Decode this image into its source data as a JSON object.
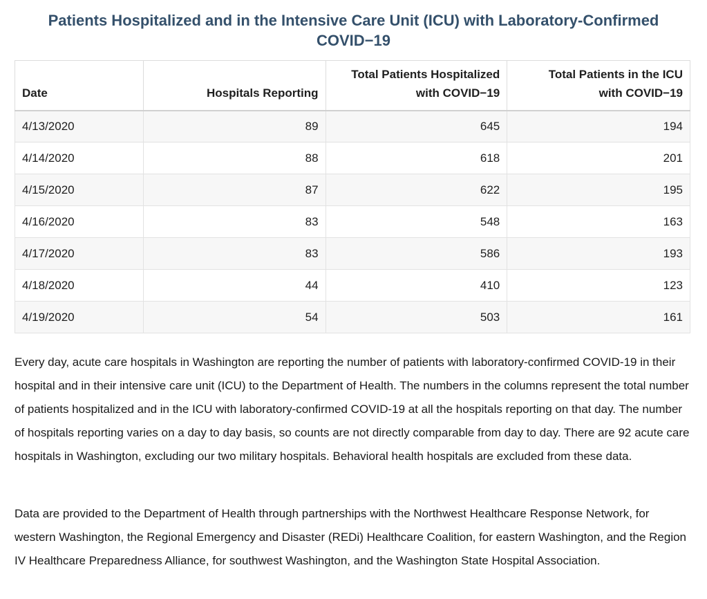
{
  "title": "Patients Hospitalized and in the Intensive Care Unit (ICU) with Laboratory-Confirmed COVID−19",
  "table": {
    "headers": {
      "date": "Date",
      "hospitals_reporting": "Hospitals Reporting",
      "total_hospitalized_line1": "Total Patients Hospitalized",
      "total_hospitalized_line2": "with COVID−19",
      "total_icu_line1": "Total Patients in the ICU",
      "total_icu_line2": "with COVID−19"
    },
    "rows": [
      {
        "date": "4/13/2020",
        "hospitals_reporting": "89",
        "total_hospitalized": "645",
        "total_icu": "194"
      },
      {
        "date": "4/14/2020",
        "hospitals_reporting": "88",
        "total_hospitalized": "618",
        "total_icu": "201"
      },
      {
        "date": "4/15/2020",
        "hospitals_reporting": "87",
        "total_hospitalized": "622",
        "total_icu": "195"
      },
      {
        "date": "4/16/2020",
        "hospitals_reporting": "83",
        "total_hospitalized": "548",
        "total_icu": "163"
      },
      {
        "date": "4/17/2020",
        "hospitals_reporting": "83",
        "total_hospitalized": "586",
        "total_icu": "193"
      },
      {
        "date": "4/18/2020",
        "hospitals_reporting": "44",
        "total_hospitalized": "410",
        "total_icu": "123"
      },
      {
        "date": "4/19/2020",
        "hospitals_reporting": "54",
        "total_hospitalized": "503",
        "total_icu": "161"
      }
    ]
  },
  "paragraphs": {
    "p1": "Every day, acute care hospitals in Washington are reporting the number of patients with laboratory-confirmed COVID-19 in their hospital and in their intensive care unit (ICU) to the Department of Health. The numbers in the columns represent the total number of patients hospitalized and in the ICU with laboratory-confirmed COVID-19 at all the hospitals reporting on that day. The number of hospitals reporting varies on a day to day basis, so counts are not directly comparable from day to day. There are 92 acute care hospitals in Washington, excluding our two military hospitals. Behavioral health hospitals are excluded from these data.",
    "p2": "Data are provided to the Department of Health through partnerships with the Northwest Healthcare Response Network, for western Washington, the Regional Emergency and Disaster (REDi) Healthcare Coalition, for eastern Washington, and the Region IV Healthcare Preparedness Alliance, for southwest Washington, and the Washington State Hospital Association."
  },
  "colors": {
    "title": "#34506b",
    "row_stripe": "#f7f7f7",
    "border": "#dcdcdc"
  }
}
